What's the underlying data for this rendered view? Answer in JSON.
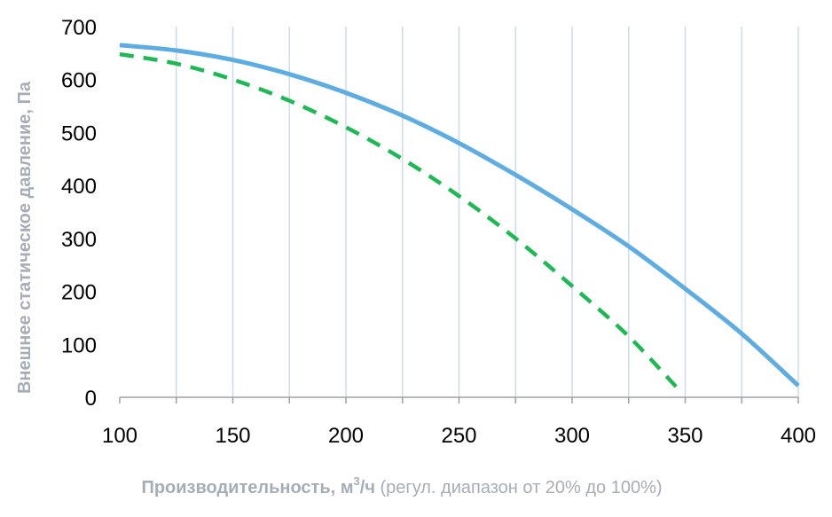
{
  "chart_data": {
    "type": "line",
    "title": "",
    "xlabel": {
      "bold": "Производительность, м",
      "sup": "3",
      "bold_end": "/ч",
      "normal": " (регул. диапазон от 20% до 100%)"
    },
    "ylabel": "Внешнее статическое давление, Па",
    "xlim": [
      100,
      400
    ],
    "ylim": [
      0,
      700
    ],
    "xticks": [
      100,
      150,
      200,
      250,
      300,
      350,
      400
    ],
    "yticks": [
      0,
      100,
      200,
      300,
      400,
      500,
      600,
      700
    ],
    "grid": true,
    "legend": "none",
    "series": [
      {
        "style": "solid",
        "color": "#5DADE2",
        "x": [
          100,
          125,
          150,
          175,
          200,
          225,
          250,
          275,
          300,
          325,
          350,
          375,
          400
        ],
        "y": [
          665,
          655,
          637,
          610,
          575,
          532,
          480,
          420,
          355,
          285,
          205,
          120,
          22
        ]
      },
      {
        "style": "dashed",
        "color": "#1DB954",
        "x": [
          100,
          125,
          150,
          175,
          200,
          225,
          250,
          275,
          300,
          325,
          347
        ],
        "y": [
          648,
          630,
          600,
          560,
          510,
          450,
          380,
          300,
          210,
          115,
          15
        ]
      }
    ]
  }
}
